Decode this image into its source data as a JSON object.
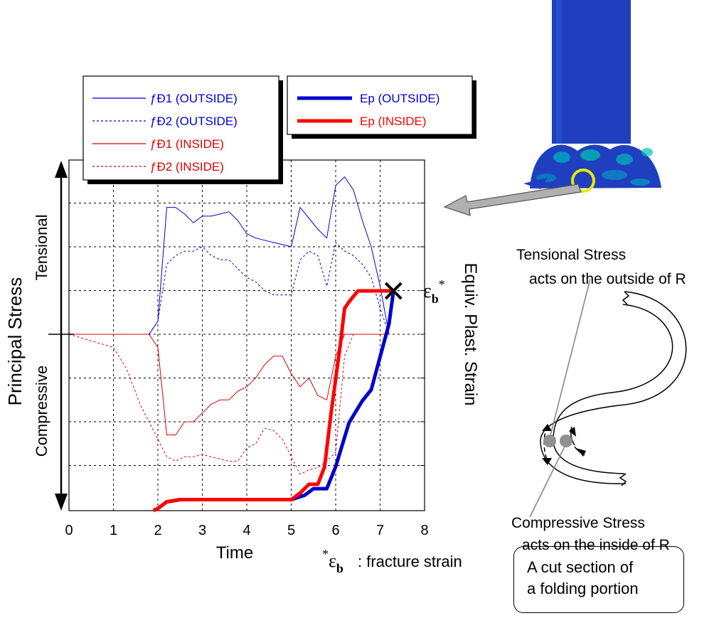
{
  "chart_data": {
    "type": "line",
    "xlabel": "Time",
    "ylabel": "Principal  Stress",
    "ylabel_tensional": "Tensional",
    "ylabel_compressive": "Compressive",
    "right_axis_label": "Equiv. Plast. Strain",
    "xlim": [
      0,
      8
    ],
    "x_ticks": [
      "0",
      "1",
      "2",
      "3",
      "4",
      "5",
      "6",
      "7",
      "8"
    ],
    "grid": true,
    "legend_stress": [
      {
        "label": "ƒÐ1 (OUTSIDE)",
        "color": "#0000cc",
        "style": "solid"
      },
      {
        "label": "ƒÐ2 (OUTSIDE)",
        "color": "#0000cc",
        "style": "dashed"
      },
      {
        "label": "ƒÐ1 (INSIDE)",
        "color": "#dd0000",
        "style": "solid"
      },
      {
        "label": "ƒÐ2 (INSIDE)",
        "color": "#dd0000",
        "style": "dashed"
      }
    ],
    "legend_strain": [
      {
        "label": "Ep  (OUTSIDE)",
        "color": "#0000cc",
        "style": "thick"
      },
      {
        "label": "Ep  (INSIDE)",
        "color": "#ff0000",
        "style": "thick"
      }
    ],
    "stress_units_note": "y in grid divisions: 0 = neutral axis, +3 top, -4 bottom",
    "series": [
      {
        "name": "ƒÐ1 (OUTSIDE)",
        "color": "#0000cc",
        "dash": false,
        "width": 1,
        "x": [
          0,
          1.8,
          2.0,
          2.2,
          2.4,
          2.6,
          2.8,
          3.0,
          3.2,
          3.4,
          3.6,
          3.8,
          4.0,
          4.2,
          4.4,
          4.6,
          4.8,
          5.0,
          5.2,
          5.4,
          5.6,
          5.8,
          6.0,
          6.2,
          6.4,
          6.6,
          6.8,
          7.0,
          7.2
        ],
        "y": [
          0,
          0,
          0.3,
          2.9,
          2.9,
          2.75,
          2.55,
          2.7,
          2.7,
          2.75,
          2.8,
          2.6,
          2.3,
          2.2,
          2.15,
          2.1,
          2.05,
          2.0,
          2.9,
          2.65,
          2.4,
          2.2,
          3.4,
          3.6,
          3.3,
          2.6,
          2.0,
          1.1,
          0
        ]
      },
      {
        "name": "ƒÐ2 (OUTSIDE)",
        "color": "#0000cc",
        "dash": true,
        "width": 1,
        "x": [
          0,
          1.8,
          2.0,
          2.2,
          2.4,
          2.6,
          2.8,
          3.0,
          3.2,
          3.4,
          3.6,
          3.8,
          4.0,
          4.2,
          4.4,
          4.6,
          4.8,
          5.0,
          5.2,
          5.4,
          5.6,
          5.8,
          6.0,
          6.2,
          6.4,
          6.6,
          6.8,
          7.0,
          7.2
        ],
        "y": [
          0,
          0,
          0.3,
          1.6,
          1.8,
          1.9,
          1.9,
          2.0,
          1.8,
          1.7,
          1.7,
          1.5,
          1.3,
          1.2,
          1.0,
          0.9,
          0.9,
          0.9,
          1.7,
          1.9,
          1.8,
          1.1,
          2.1,
          1.9,
          1.8,
          1.6,
          1.3,
          0.6,
          0
        ]
      },
      {
        "name": "ƒÐ1 (INSIDE)",
        "color": "#dd0000",
        "dash": false,
        "width": 1,
        "x": [
          0,
          1.8,
          2.0,
          2.2,
          2.4,
          2.6,
          2.8,
          3.0,
          3.2,
          3.4,
          3.6,
          3.8,
          4.0,
          4.2,
          4.4,
          4.6,
          4.8,
          5.0,
          5.2,
          5.4,
          5.6,
          5.8,
          6.0,
          6.2,
          6.4,
          6.6,
          6.8,
          7.0,
          7.2
        ],
        "y": [
          0,
          0,
          -0.3,
          -2.3,
          -2.3,
          -2.0,
          -2.0,
          -1.8,
          -1.6,
          -1.5,
          -1.5,
          -1.3,
          -1.2,
          -1.0,
          -0.7,
          -0.5,
          -0.5,
          -0.9,
          -1.2,
          -1.0,
          -1.4,
          -1.5,
          -0.5,
          0.0,
          0.0,
          0.0,
          0.0,
          0.0,
          0.0
        ]
      },
      {
        "name": "ƒÐ2 (INSIDE)",
        "color": "#dd0000",
        "dash": true,
        "width": 1,
        "x": [
          0,
          1.0,
          1.3,
          1.6,
          1.8,
          2.0,
          2.2,
          2.4,
          2.6,
          2.8,
          3.0,
          3.2,
          3.4,
          3.6,
          3.8,
          4.0,
          4.2,
          4.4,
          4.6,
          4.8,
          5.0,
          5.2,
          5.4,
          5.6,
          5.8,
          6.0,
          6.2,
          6.4,
          6.6,
          6.8,
          7.0,
          7.2
        ],
        "y": [
          0,
          -0.3,
          -0.8,
          -1.6,
          -2.0,
          -2.4,
          -2.8,
          -2.9,
          -2.8,
          -2.8,
          -2.75,
          -2.8,
          -2.85,
          -2.9,
          -2.9,
          -2.6,
          -2.5,
          -2.15,
          -2.2,
          -2.4,
          -2.8,
          -3.2,
          -3.1,
          -3.05,
          -2.9,
          -2.7,
          -0.5,
          0.0,
          0.0,
          0.0,
          0.0,
          0.0
        ]
      },
      {
        "name": "Ep  (OUTSIDE)",
        "color": "#0000cc",
        "dash": false,
        "width": 5,
        "x": [
          1.9,
          2.0,
          2.2,
          2.5,
          3.0,
          4.0,
          5.0,
          5.3,
          5.5,
          5.8,
          6.0,
          6.3,
          6.6,
          6.8,
          7.0,
          7.2,
          7.3
        ],
        "y": [
          0,
          0.01,
          0.04,
          0.05,
          0.05,
          0.05,
          0.05,
          0.07,
          0.1,
          0.1,
          0.2,
          0.4,
          0.5,
          0.55,
          0.7,
          0.85,
          1.0
        ]
      },
      {
        "name": "Ep  (INSIDE)",
        "color": "#ff0000",
        "dash": false,
        "width": 5,
        "x": [
          1.9,
          2.0,
          2.2,
          2.5,
          3.0,
          4.0,
          5.0,
          5.2,
          5.4,
          5.6,
          5.75,
          5.9,
          6.1,
          6.2,
          6.3,
          6.5,
          7.3
        ],
        "y": [
          0,
          0.01,
          0.04,
          0.05,
          0.05,
          0.05,
          0.05,
          0.08,
          0.12,
          0.12,
          0.2,
          0.45,
          0.75,
          0.92,
          0.95,
          1.0,
          1.0
        ]
      }
    ],
    "fracture_marker": {
      "x": 7.3,
      "y": 1.0,
      "label": "ε*b"
    },
    "footnote_symbol": "*εb",
    "footnote_text": ": fracture strain"
  },
  "annotations": {
    "tensional_title": "Tensional Stress",
    "tensional_sub": "acts on the outside of R",
    "compressive_title": "Compressive Stress",
    "compressive_sub": "acts on the inside of R",
    "caption_line1": "A cut section of",
    "caption_line2": "a folding portion"
  },
  "colors": {
    "blue": "#0000cc",
    "red": "#ff0000",
    "pillar": "#1f3fbf",
    "highlight_circle": "#e8e800",
    "arrow_gray": "#b0b0b0"
  }
}
